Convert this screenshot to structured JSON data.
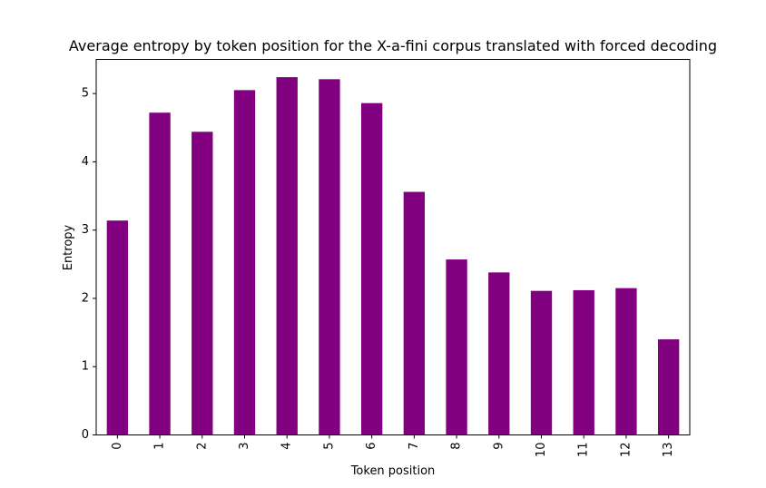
{
  "chart_data": {
    "type": "bar",
    "title": "Average entropy by token position for the X-a-fini corpus translated with forced decoding",
    "xlabel": "Token position",
    "ylabel": "Entropy",
    "categories": [
      "0",
      "1",
      "2",
      "3",
      "4",
      "5",
      "6",
      "7",
      "8",
      "9",
      "10",
      "11",
      "12",
      "13"
    ],
    "values": [
      3.14,
      4.72,
      4.44,
      5.05,
      5.24,
      5.21,
      4.86,
      3.56,
      2.57,
      2.38,
      2.11,
      2.12,
      2.15,
      1.4
    ],
    "ylim": [
      0,
      5.5
    ],
    "yticks": [
      0,
      1,
      2,
      3,
      4,
      5
    ],
    "bar_color": "#800080",
    "grid": false,
    "legend": "none",
    "xtick_rotation": "vertical"
  }
}
